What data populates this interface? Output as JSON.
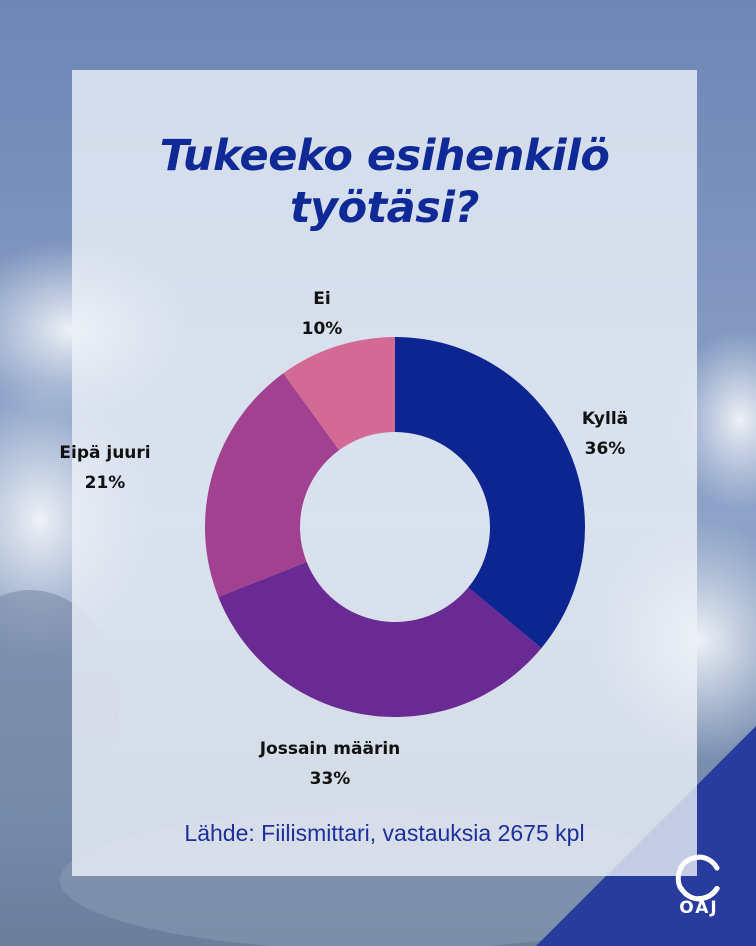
{
  "title_lines": [
    "Tukeeko esihenkilö",
    "työtäsi?"
  ],
  "source_text": "Lähde: Fiilismittari, vastauksia 2675 kpl",
  "logo_text": "OAJ",
  "colors": {
    "title": "#0f2a96",
    "corner": "#283c9e",
    "slices": [
      "#0d2591",
      "#6a2a93",
      "#a2418f",
      "#d36a93"
    ]
  },
  "chart_data": {
    "type": "pie",
    "donut": true,
    "title": "Tukeeko esihenkilö työtäsi?",
    "slices": [
      {
        "label": "Kyllä",
        "value": 36,
        "value_label": "36%"
      },
      {
        "label": "Jossain määrin",
        "value": 33,
        "value_label": "33%"
      },
      {
        "label": "Eipä juuri",
        "value": 21,
        "value_label": "21%"
      },
      {
        "label": "Ei",
        "value": 10,
        "value_label": "10%"
      }
    ]
  }
}
